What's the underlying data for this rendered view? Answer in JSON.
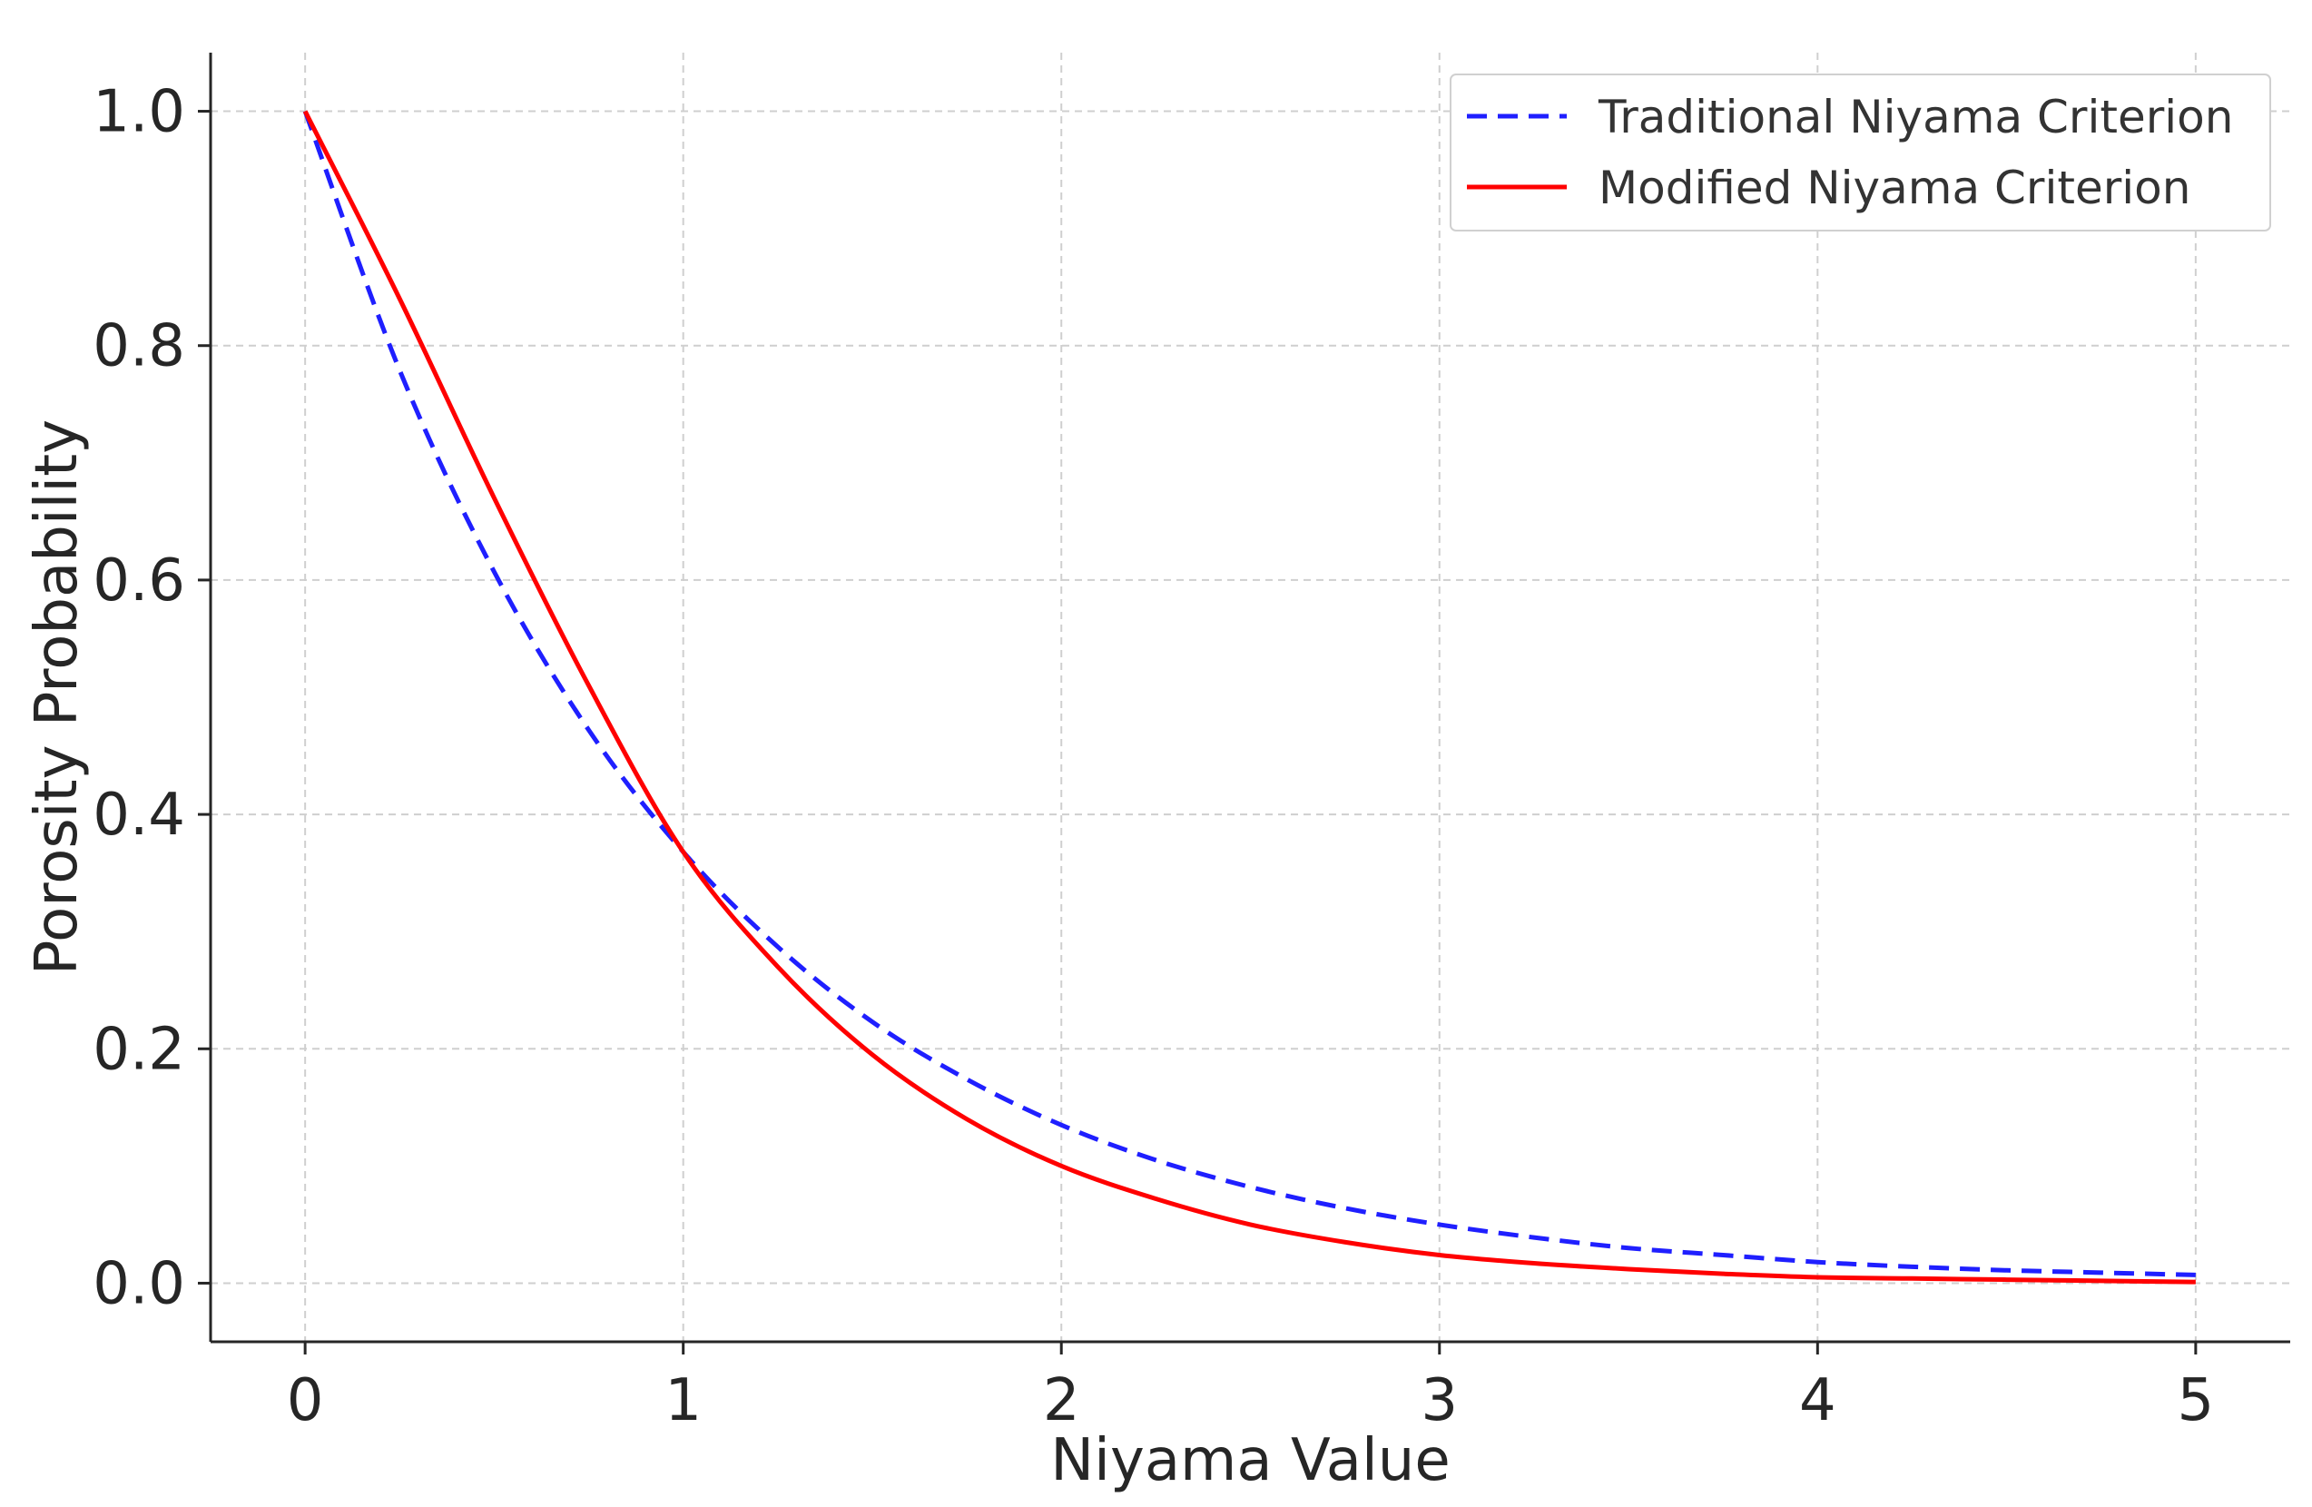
{
  "chart_data": {
    "type": "line",
    "title": "",
    "xlabel": "Niyama Value",
    "ylabel": "Porosity Probability",
    "xlim": [
      -0.25,
      5.25
    ],
    "ylim": [
      -0.05,
      1.05
    ],
    "x_ticks": [
      0,
      1,
      2,
      3,
      4,
      5
    ],
    "x_tick_labels": [
      "0",
      "1",
      "2",
      "3",
      "4",
      "5"
    ],
    "y_ticks": [
      0.0,
      0.2,
      0.4,
      0.6,
      0.8,
      1.0
    ],
    "y_tick_labels": [
      "0.0",
      "0.2",
      "0.4",
      "0.6",
      "0.8",
      "1.0"
    ],
    "grid": true,
    "legend_position": "top-right",
    "x": [
      0,
      0.25,
      0.5,
      0.75,
      1.0,
      1.25,
      1.5,
      1.75,
      2.0,
      2.25,
      2.5,
      2.75,
      3.0,
      3.25,
      3.5,
      3.75,
      4.0,
      4.25,
      4.5,
      4.75,
      5.0
    ],
    "series": [
      {
        "name": "Traditional Niyama Criterion",
        "style": "dashed",
        "color": "#1f1fff",
        "values": [
          1.0,
          0.779,
          0.607,
          0.472,
          0.368,
          0.287,
          0.223,
          0.174,
          0.135,
          0.105,
          0.082,
          0.064,
          0.05,
          0.039,
          0.03,
          0.024,
          0.018,
          0.014,
          0.011,
          0.009,
          0.007
        ]
      },
      {
        "name": "Modified Niyama Criterion",
        "style": "solid",
        "color": "#ff0000",
        "values": [
          1.0,
          0.84,
          0.67,
          0.51,
          0.368,
          0.27,
          0.195,
          0.14,
          0.1,
          0.072,
          0.05,
          0.035,
          0.024,
          0.017,
          0.012,
          0.008,
          0.005,
          0.004,
          0.003,
          0.002,
          0.001
        ]
      }
    ]
  }
}
